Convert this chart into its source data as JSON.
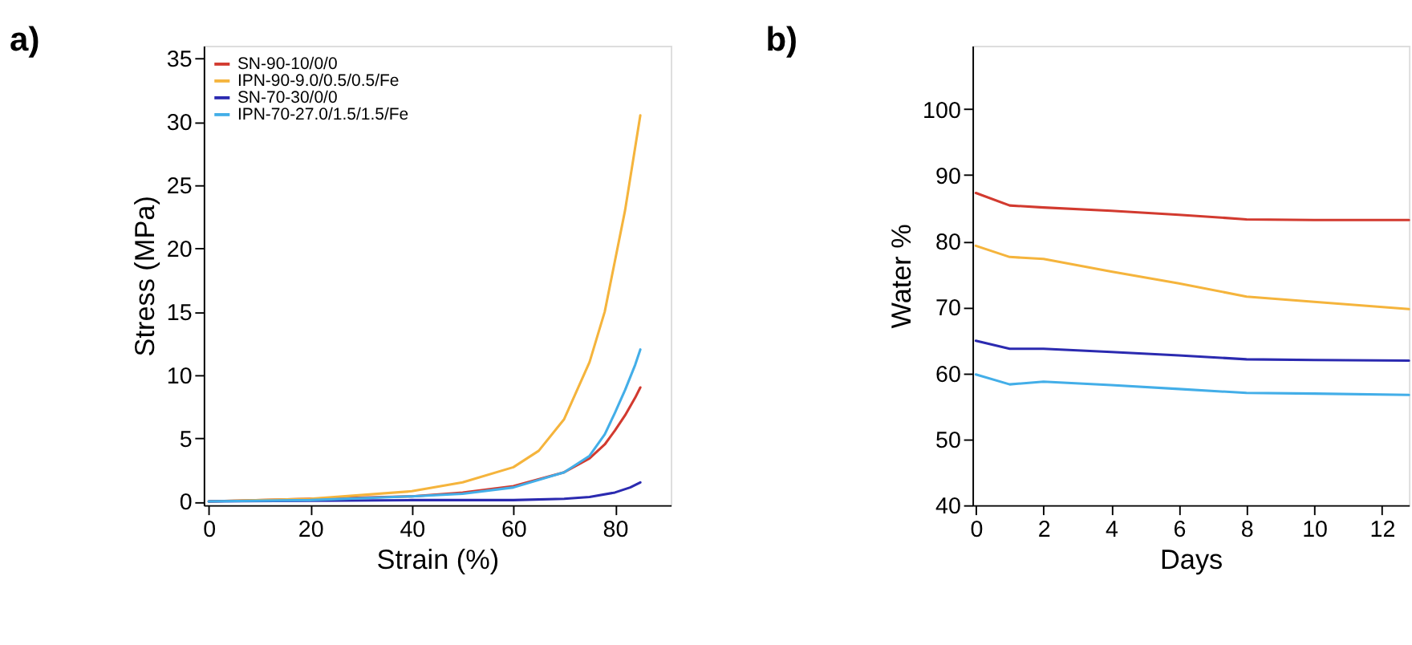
{
  "chart_data": [
    {
      "type": "line",
      "title": "a)",
      "xlabel": "Strain (%)",
      "ylabel": "Stress (MPa)",
      "xlim": [
        -1,
        91
      ],
      "ylim": [
        -0.3,
        36
      ],
      "xticks": [
        0,
        20,
        40,
        60,
        80
      ],
      "yticks": [
        0,
        5,
        10,
        15,
        20,
        25,
        30,
        35
      ],
      "grid": false,
      "legend": "top left",
      "marker": "none",
      "line_style": "solid",
      "series": [
        {
          "name": "SN-90-10/0/0",
          "color": "#d23a2f",
          "x": [
            0,
            20,
            40,
            50,
            60,
            70,
            75,
            78,
            80,
            82,
            84,
            85
          ],
          "values": [
            0,
            0.2,
            0.4,
            0.7,
            1.2,
            2.3,
            3.4,
            4.5,
            5.6,
            6.8,
            8.2,
            9
          ]
        },
        {
          "name": "IPN-90-9.0/0.5/0.5/Fe",
          "color": "#f5b43c",
          "x": [
            0,
            20,
            40,
            50,
            60,
            65,
            70,
            75,
            78,
            80,
            82,
            84,
            85
          ],
          "values": [
            0,
            0.2,
            0.8,
            1.5,
            2.7,
            4,
            6.5,
            11,
            15,
            19,
            23,
            28,
            30.5
          ]
        },
        {
          "name": "SN-70-30/0/0",
          "color": "#2b2ab0",
          "x": [
            0,
            40,
            60,
            70,
            75,
            80,
            83,
            85
          ],
          "values": [
            0,
            0.1,
            0.1,
            0.2,
            0.35,
            0.7,
            1.1,
            1.5
          ]
        },
        {
          "name": "IPN-70-27.0/1.5/1.5/Fe",
          "color": "#43aee8",
          "x": [
            0,
            20,
            40,
            50,
            60,
            70,
            75,
            78,
            80,
            82,
            84,
            85
          ],
          "values": [
            0,
            0.1,
            0.4,
            0.6,
            1.1,
            2.3,
            3.6,
            5.3,
            7,
            8.8,
            10.8,
            12
          ]
        }
      ]
    },
    {
      "type": "line",
      "title": "b)",
      "xlabel": "Days",
      "ylabel": "Water %",
      "xlim": [
        -0.1,
        12.8
      ],
      "ylim": [
        40,
        109.6
      ],
      "xticks": [
        0,
        2,
        4,
        6,
        8,
        10,
        12
      ],
      "yticks": [
        40,
        50,
        60,
        70,
        80,
        90,
        100
      ],
      "grid": false,
      "legend": "top left",
      "marker": "none",
      "line_style": "solid",
      "series": [
        {
          "name": "SN-90-10/0/0",
          "color": "#d23a2f",
          "x": [
            0,
            1,
            2,
            4,
            6,
            8,
            10,
            12.8
          ],
          "values": [
            87.3,
            85.4,
            85.1,
            84.6,
            84.0,
            83.3,
            83.2,
            83.2
          ]
        },
        {
          "name": "IPN-90-9.0/0.5/0.5/Fe",
          "color": "#f5b43c",
          "x": [
            0,
            1,
            2,
            4,
            6,
            8,
            10,
            12.8
          ],
          "values": [
            79.3,
            77.6,
            77.3,
            75.4,
            73.6,
            71.6,
            70.8,
            69.7
          ]
        },
        {
          "name": "SN-70-30/0/0",
          "color": "#2b2ab0",
          "x": [
            0,
            1,
            2,
            4,
            6,
            8,
            10,
            12.8
          ],
          "values": [
            64.9,
            63.7,
            63.7,
            63.2,
            62.7,
            62.1,
            62.0,
            61.9
          ]
        },
        {
          "name": "IPN-70-27.0/1.5/1.5/Fe",
          "color": "#43aee8",
          "x": [
            0,
            1,
            2,
            4,
            6,
            8,
            10,
            12.8
          ],
          "values": [
            59.8,
            58.3,
            58.7,
            58.2,
            57.6,
            57.0,
            56.9,
            56.7
          ]
        }
      ]
    }
  ]
}
